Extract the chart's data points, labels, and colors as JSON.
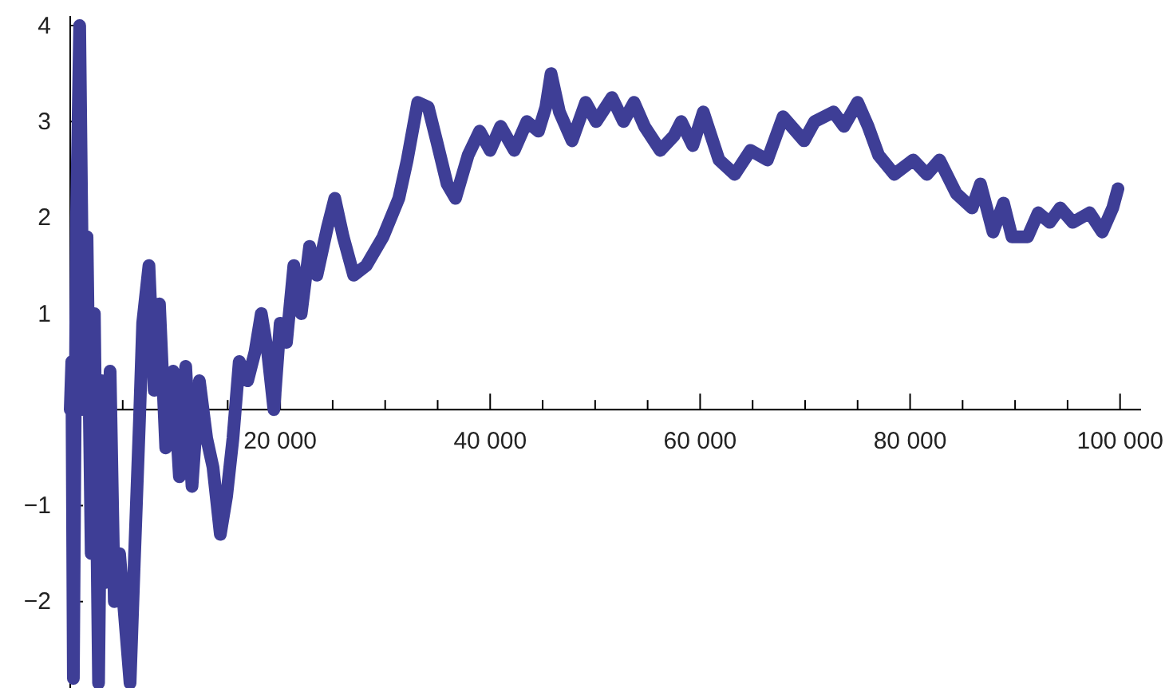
{
  "chart_data": {
    "type": "line",
    "xlim": [
      0,
      102000
    ],
    "ylim": [
      -2.9,
      4.1
    ],
    "xticks": [
      {
        "value": 5000,
        "label": null
      },
      {
        "value": 10000,
        "label": null
      },
      {
        "value": 15000,
        "label": null
      },
      {
        "value": 20000,
        "label": "20 000"
      },
      {
        "value": 25000,
        "label": null
      },
      {
        "value": 30000,
        "label": null
      },
      {
        "value": 35000,
        "label": null
      },
      {
        "value": 40000,
        "label": "40 000"
      },
      {
        "value": 45000,
        "label": null
      },
      {
        "value": 50000,
        "label": null
      },
      {
        "value": 55000,
        "label": null
      },
      {
        "value": 60000,
        "label": "60 000"
      },
      {
        "value": 65000,
        "label": null
      },
      {
        "value": 70000,
        "label": null
      },
      {
        "value": 75000,
        "label": null
      },
      {
        "value": 80000,
        "label": "80 000"
      },
      {
        "value": 85000,
        "label": null
      },
      {
        "value": 90000,
        "label": null
      },
      {
        "value": 95000,
        "label": null
      },
      {
        "value": 100000,
        "label": "100 000"
      }
    ],
    "yticks": [
      -2,
      -1,
      1,
      2,
      3,
      4
    ],
    "grid": false,
    "marker": "none",
    "line_style": "solid",
    "series": [
      {
        "color": "#3e3e96",
        "x": [
          0,
          150,
          300,
          600,
          900,
          1300,
          1600,
          2000,
          2300,
          2700,
          3000,
          3400,
          3800,
          4200,
          4700,
          5700,
          6100,
          6600,
          6900,
          7500,
          8000,
          8500,
          9100,
          9800,
          10400,
          11000,
          11600,
          12300,
          13000,
          13600,
          14300,
          14900,
          15500,
          16100,
          16900,
          17600,
          18200,
          18800,
          19400,
          20000,
          20600,
          21300,
          22000,
          22800,
          23500,
          24500,
          25200,
          26000,
          27000,
          28200,
          29800,
          31300,
          32100,
          33100,
          34100,
          34900,
          35900,
          36700,
          37900,
          39000,
          40000,
          41000,
          42300,
          43500,
          44600,
          45300,
          45800,
          46600,
          47800,
          49100,
          50100,
          51600,
          52700,
          53700,
          54700,
          56200,
          57500,
          58200,
          59300,
          60300,
          61800,
          63300,
          64800,
          66400,
          67900,
          69900,
          70900,
          72700,
          73700,
          75000,
          76000,
          77000,
          78500,
          80300,
          81600,
          82800,
          84400,
          85900,
          86700,
          87900,
          88900,
          89700,
          91200,
          92200,
          93300,
          94300,
          95500,
          97100,
          98300,
          99300,
          99800
        ],
        "values": [
          0,
          0.5,
          -2.8,
          2.0,
          4.0,
          0.0,
          1.8,
          -1.5,
          1.0,
          -2.85,
          0.3,
          -1.8,
          0.4,
          -2.0,
          -1.5,
          -2.85,
          -1.6,
          -0.1,
          0.9,
          1.5,
          0.2,
          1.1,
          -0.4,
          0.4,
          -0.7,
          0.45,
          -0.8,
          0.3,
          -0.3,
          -0.6,
          -1.3,
          -0.9,
          -0.3,
          0.5,
          0.3,
          0.6,
          1.0,
          0.6,
          0.0,
          0.9,
          0.7,
          1.5,
          1.0,
          1.7,
          1.4,
          1.9,
          2.2,
          1.8,
          1.4,
          1.5,
          1.8,
          2.2,
          2.6,
          3.2,
          3.15,
          2.8,
          2.35,
          2.2,
          2.65,
          2.9,
          2.7,
          2.95,
          2.7,
          3.0,
          2.9,
          3.15,
          3.5,
          3.1,
          2.8,
          3.2,
          3.0,
          3.25,
          3.0,
          3.2,
          2.95,
          2.7,
          2.85,
          3.0,
          2.75,
          3.1,
          2.6,
          2.45,
          2.7,
          2.6,
          3.05,
          2.8,
          3.0,
          3.1,
          2.95,
          3.2,
          2.95,
          2.65,
          2.45,
          2.6,
          2.45,
          2.6,
          2.25,
          2.1,
          2.35,
          1.85,
          2.15,
          1.8,
          1.8,
          2.05,
          1.95,
          2.1,
          1.95,
          2.05,
          1.85,
          2.1,
          2.3
        ]
      }
    ]
  }
}
